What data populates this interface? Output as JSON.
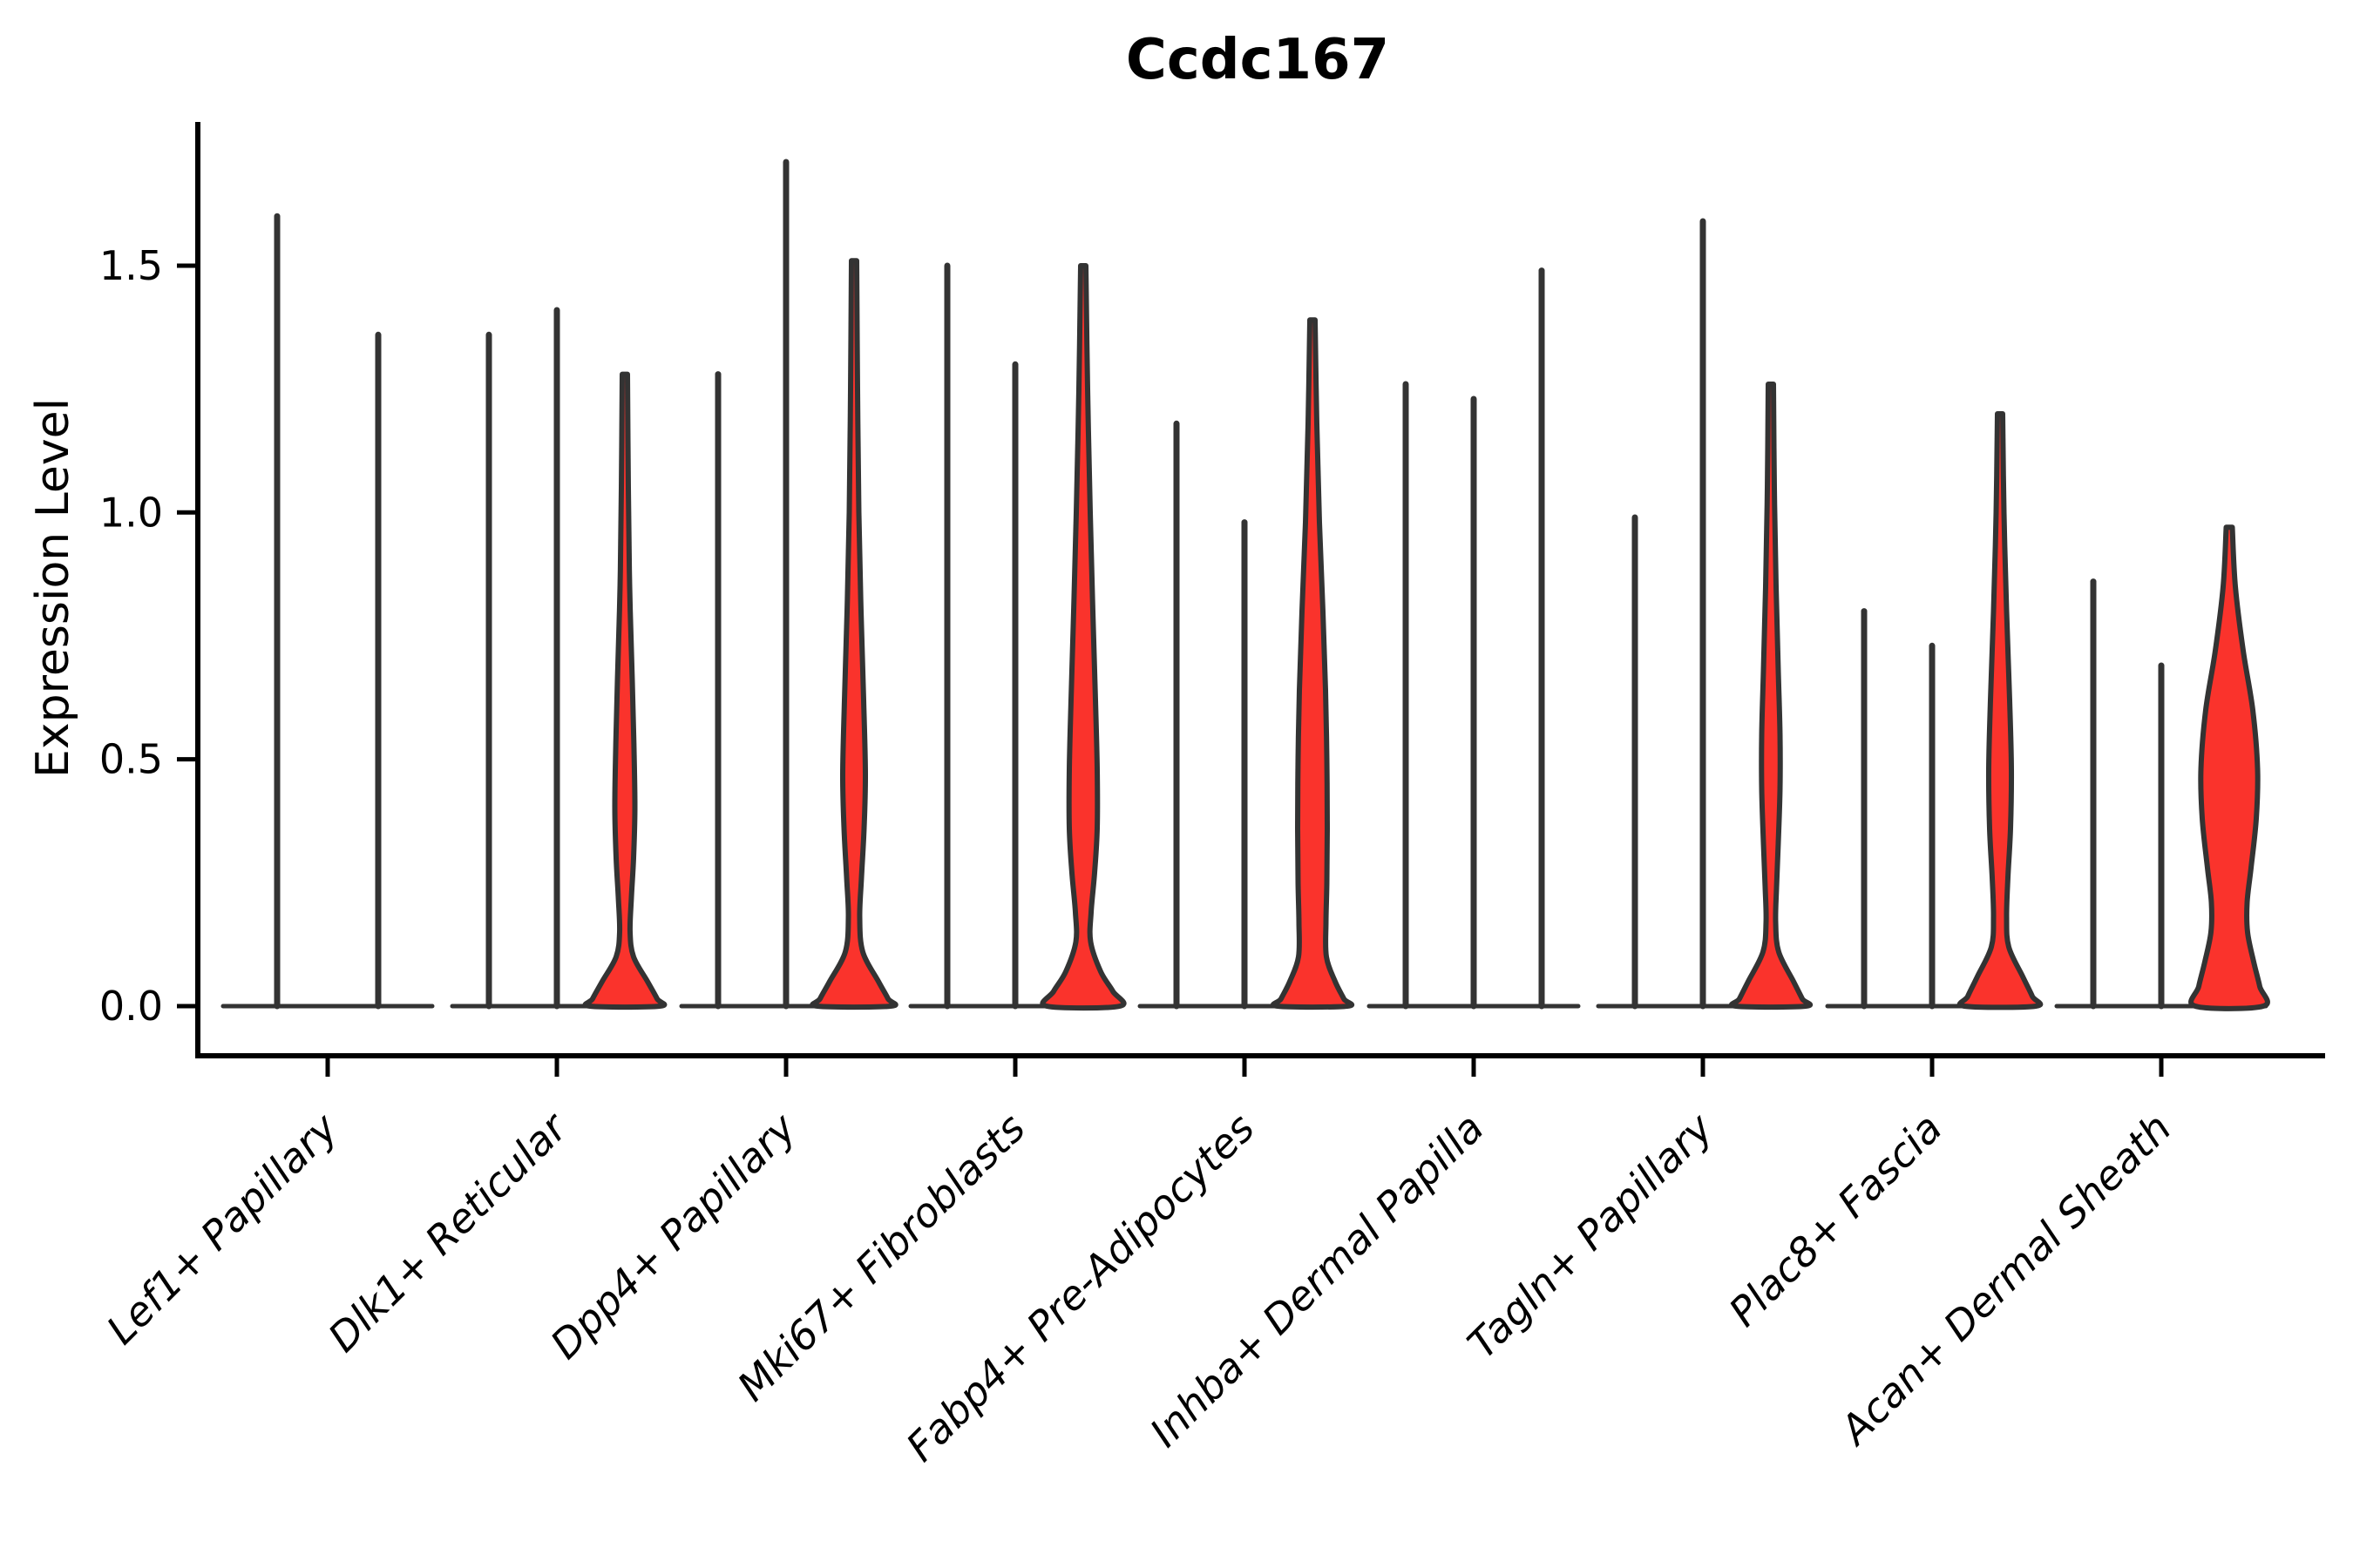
{
  "figure": {
    "title": "Ccdc167",
    "ylabel": "Expression Level",
    "background": "#ffffff"
  },
  "colors": {
    "violin_fill": "#fa332c",
    "violin_stroke": "#333333",
    "axis": "#000000",
    "text": "#000000"
  },
  "chart_data": {
    "type": "violin",
    "title": "Ccdc167",
    "xlabel": "",
    "ylabel": "Expression Level",
    "ylim": [
      -0.1,
      1.79
    ],
    "yticks": [
      0.0,
      0.5,
      1.0,
      1.5
    ],
    "ytick_labels": [
      "0.0",
      "0.5",
      "1.0",
      "1.5"
    ],
    "grid": "off",
    "legend": "none",
    "categories": [
      "Lef1+ Papillary",
      "Dlk1+ Reticular",
      "Dpp4+ Papillary",
      "Mki67+ Fibroblasts",
      "Fabp4+ Pre-Adipocytes",
      "Inhba+ Dermal Papilla",
      "Tagln+ Papillary",
      "Plac8+ Fascia",
      "Acan+ Dermal Sheath"
    ],
    "groups": [
      {
        "label": "Lef1+ Papillary",
        "violins": [
          {
            "max": 1.6,
            "filled": false
          },
          {
            "max": 1.36,
            "filled": false
          }
        ]
      },
      {
        "label": "Dlk1+ Reticular",
        "violins": [
          {
            "max": 1.36,
            "filled": false
          },
          {
            "max": 1.41,
            "filled": false
          },
          {
            "max": 1.28,
            "filled": true,
            "profile": [
              [
                1.28,
                3
              ],
              [
                1.05,
                4
              ],
              [
                0.85,
                5.5
              ],
              [
                0.66,
                8.5
              ],
              [
                0.52,
                10.5
              ],
              [
                0.4,
                11.5
              ],
              [
                0.3,
                10
              ],
              [
                0.22,
                7.5
              ],
              [
                0.15,
                6
              ],
              [
                0.1,
                10
              ],
              [
                0.05,
                26
              ],
              [
                0.015,
                37
              ],
              [
                0,
                40
              ]
            ]
          }
        ]
      },
      {
        "label": "Dpp4+ Papillary",
        "violins": [
          {
            "max": 1.28,
            "filled": false
          },
          {
            "max": 1.71,
            "filled": false
          },
          {
            "max": 1.51,
            "filled": true,
            "profile": [
              [
                1.51,
                3
              ],
              [
                1.25,
                4
              ],
              [
                1.0,
                5.5
              ],
              [
                0.8,
                8
              ],
              [
                0.62,
                11
              ],
              [
                0.47,
                13
              ],
              [
                0.36,
                11.5
              ],
              [
                0.26,
                8.5
              ],
              [
                0.18,
                6.5
              ],
              [
                0.11,
                10
              ],
              [
                0.05,
                28
              ],
              [
                0.015,
                39
              ],
              [
                0,
                42
              ]
            ]
          }
        ]
      },
      {
        "label": "Mki67+ Fibroblasts",
        "violins": [
          {
            "max": 1.5,
            "filled": false
          },
          {
            "max": 1.3,
            "filled": false
          },
          {
            "max": 1.5,
            "filled": true,
            "profile": [
              [
                1.5,
                3
              ],
              [
                1.25,
                5
              ],
              [
                1.0,
                8
              ],
              [
                0.8,
                11
              ],
              [
                0.62,
                14
              ],
              [
                0.48,
                16
              ],
              [
                0.36,
                16
              ],
              [
                0.27,
                13
              ],
              [
                0.19,
                9
              ],
              [
                0.13,
                8.5
              ],
              [
                0.07,
                20
              ],
              [
                0.03,
                34
              ],
              [
                0,
                42
              ]
            ]
          }
        ]
      },
      {
        "label": "Fabp4+ Pre-Adipocytes",
        "violins": [
          {
            "max": 1.18,
            "filled": false
          },
          {
            "max": 0.98,
            "filled": false
          },
          {
            "max": 1.39,
            "filled": true,
            "profile": [
              [
                1.39,
                3
              ],
              [
                1.18,
                5
              ],
              [
                0.98,
                8
              ],
              [
                0.8,
                12
              ],
              [
                0.64,
                15
              ],
              [
                0.5,
                16.5
              ],
              [
                0.36,
                17
              ],
              [
                0.25,
                16.5
              ],
              [
                0.17,
                15.5
              ],
              [
                0.1,
                16
              ],
              [
                0.05,
                26
              ],
              [
                0.015,
                36
              ],
              [
                0,
                40
              ]
            ]
          }
        ]
      },
      {
        "label": "Inhba+ Dermal Papilla",
        "violins": [
          {
            "max": 1.26,
            "filled": false
          },
          {
            "max": 1.23,
            "filled": false
          },
          {
            "max": 1.49,
            "filled": false
          }
        ]
      },
      {
        "label": "Tagln+ Papillary",
        "violins": [
          {
            "max": 0.99,
            "filled": false
          },
          {
            "max": 1.59,
            "filled": false
          },
          {
            "max": 1.26,
            "filled": true,
            "profile": [
              [
                1.26,
                3
              ],
              [
                1.05,
                4
              ],
              [
                0.85,
                6
              ],
              [
                0.68,
                8.5
              ],
              [
                0.55,
                10.5
              ],
              [
                0.44,
                10.5
              ],
              [
                0.33,
                8.5
              ],
              [
                0.24,
                6.5
              ],
              [
                0.17,
                5.5
              ],
              [
                0.11,
                9
              ],
              [
                0.05,
                26
              ],
              [
                0.015,
                36
              ],
              [
                0,
                40
              ]
            ]
          }
        ]
      },
      {
        "label": "Plac8+ Fascia",
        "violins": [
          {
            "max": 0.8,
            "filled": false
          },
          {
            "max": 0.73,
            "filled": false
          },
          {
            "max": 1.2,
            "filled": true,
            "profile": [
              [
                1.2,
                3
              ],
              [
                1.0,
                4.5
              ],
              [
                0.8,
                7.5
              ],
              [
                0.62,
                11
              ],
              [
                0.48,
                13
              ],
              [
                0.36,
                12
              ],
              [
                0.26,
                9
              ],
              [
                0.18,
                7.5
              ],
              [
                0.12,
                10
              ],
              [
                0.06,
                26
              ],
              [
                0.02,
                37
              ],
              [
                0,
                41
              ]
            ]
          }
        ]
      },
      {
        "label": "Acan+ Dermal Sheath",
        "violins": [
          {
            "max": 0.86,
            "filled": false
          },
          {
            "max": 0.69,
            "filled": false
          },
          {
            "max": 0.97,
            "filled": true,
            "profile": [
              [
                0.97,
                3.5
              ],
              [
                0.85,
                7
              ],
              [
                0.72,
                16
              ],
              [
                0.6,
                27
              ],
              [
                0.48,
                32.5
              ],
              [
                0.38,
                31
              ],
              [
                0.28,
                25
              ],
              [
                0.21,
                20.5
              ],
              [
                0.15,
                21
              ],
              [
                0.09,
                28
              ],
              [
                0.04,
                35
              ],
              [
                0,
                39
              ]
            ]
          }
        ]
      }
    ]
  }
}
